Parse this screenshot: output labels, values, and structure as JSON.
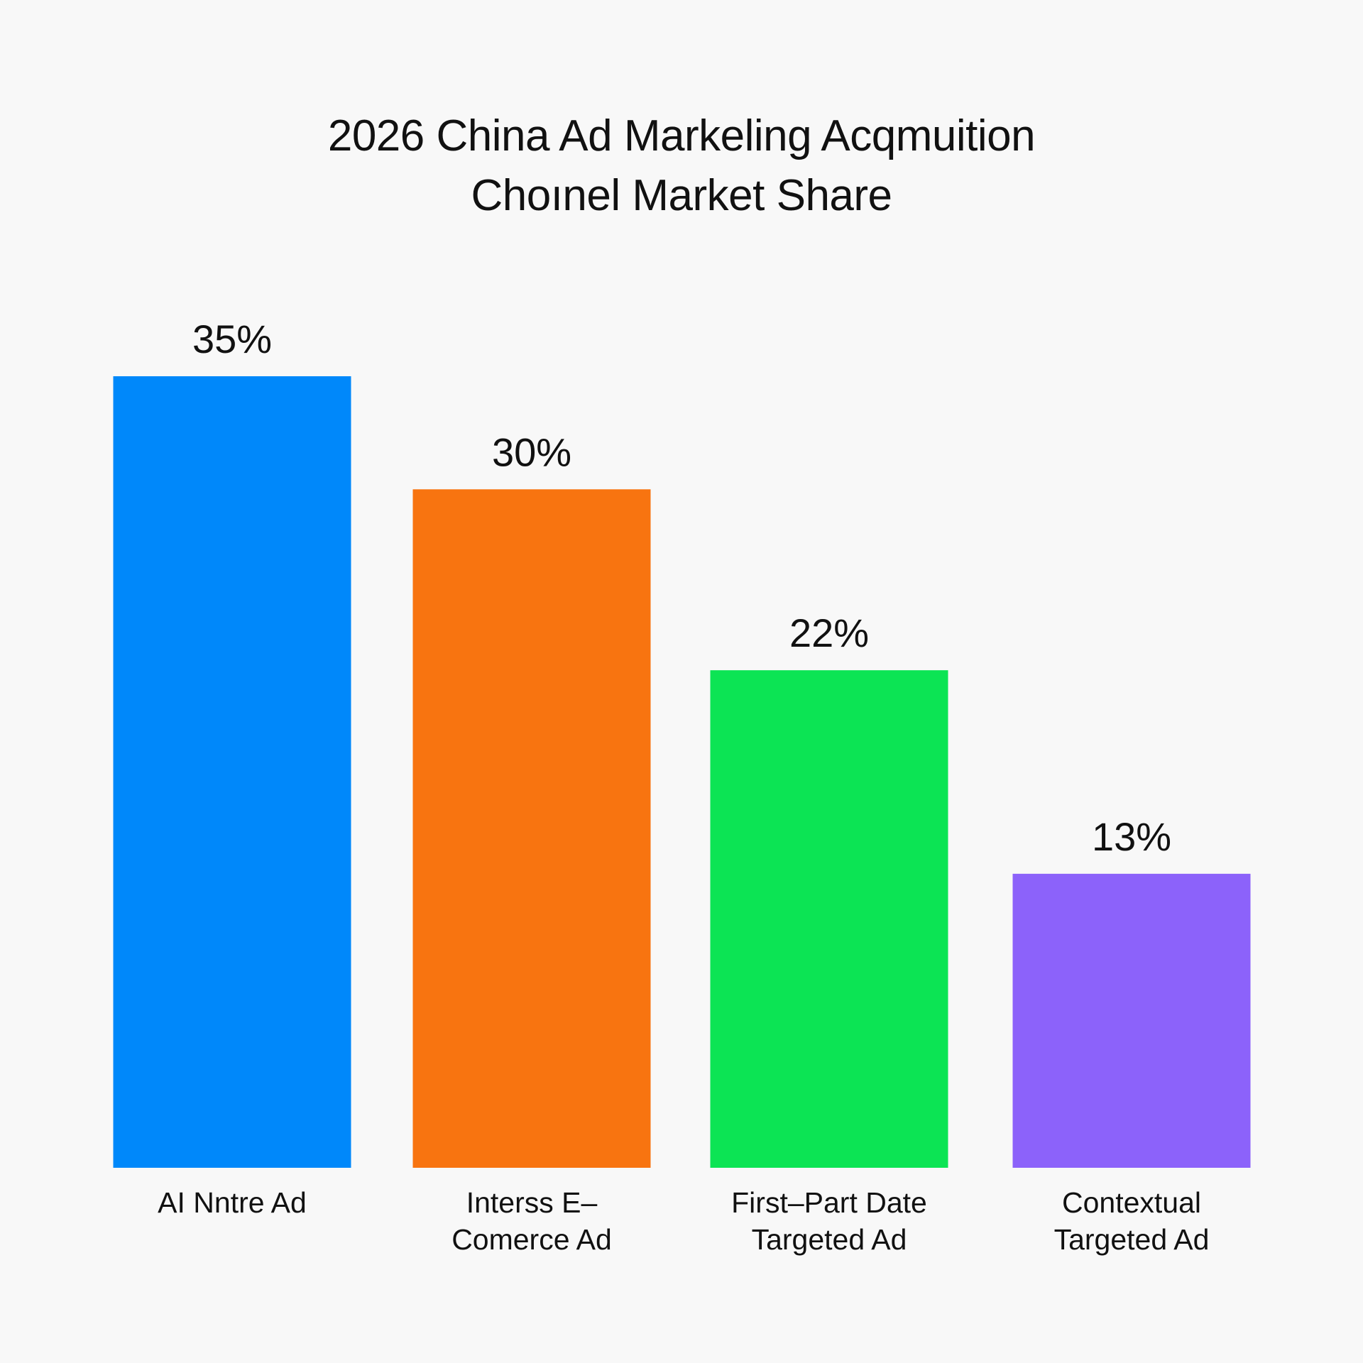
{
  "chart_data": {
    "type": "bar",
    "title_lines": [
      "2026 China Ad Markeling Acqmuition",
      "Choınel Market Share"
    ],
    "categories": [
      [
        "AI Nntre Ad"
      ],
      [
        "Interss E–",
        "Comerce Ad"
      ],
      [
        "First–Part Date",
        "Targeted Ad"
      ],
      [
        "Contextual",
        "Targeted Ad"
      ]
    ],
    "values": [
      35,
      30,
      22,
      13
    ],
    "value_labels": [
      "35%",
      "30%",
      "22%",
      "13%"
    ],
    "colors": [
      "#0088fa",
      "#f87410",
      "#0ce454",
      "#8c62fa"
    ],
    "ylim": [
      0,
      35
    ],
    "grid": false,
    "legend": "none"
  }
}
